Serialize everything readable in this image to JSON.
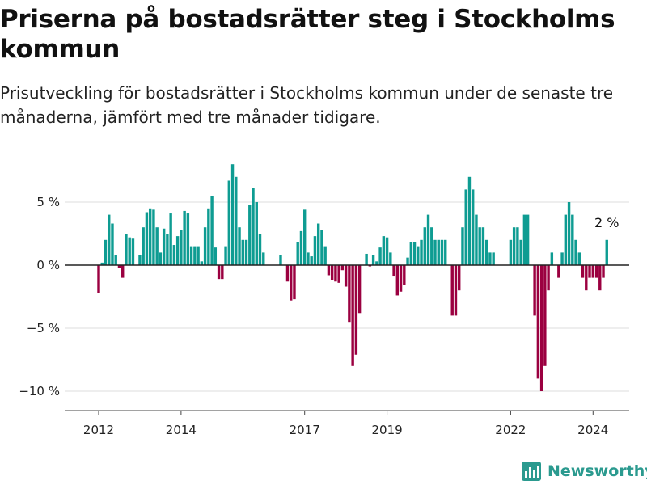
{
  "title": "Priserna på bostadsrätter steg i Stockholms kommun",
  "subtitle": "Prisutveckling för bostadsrätter i Stockholms kommun under de senaste tre månaderna, jämfört med tre månader tidigare.",
  "brand": {
    "name": "Newsworthy",
    "icon": "newsworthy-logo-icon"
  },
  "colors": {
    "positive": "#0e9c92",
    "negative": "#9b0040",
    "grid": "#dddddd",
    "zero_line": "#222222",
    "axis": "#444444"
  },
  "chart_data": {
    "type": "bar",
    "title": "Priserna på bostadsrätter steg i Stockholms kommun",
    "subtitle": "Prisutveckling för bostadsrätter i Stockholms kommun under de senaste tre månaderna, jämfört med tre månader tidigare.",
    "xlabel": "",
    "ylabel": "",
    "unit": "%",
    "ylim": [
      -11.5,
      8.5
    ],
    "y_ticks": [
      5,
      0,
      -5,
      -10
    ],
    "y_tick_labels": [
      "5 %",
      "0 %",
      "−5 %",
      "−10 %"
    ],
    "x_ticks": [
      2012,
      2014,
      2017,
      2019,
      2022,
      2024
    ],
    "x_tick_labels": [
      "2012",
      "2014",
      "2017",
      "2019",
      "2022",
      "2024"
    ],
    "grid": true,
    "first_month": "2012-01",
    "values": [
      -2.2,
      0.2,
      2.0,
      4.0,
      3.3,
      0.8,
      -0.2,
      -1.0,
      2.5,
      2.2,
      2.1,
      0.0,
      0.8,
      3.0,
      4.2,
      4.5,
      4.4,
      3.0,
      1.0,
      2.9,
      2.5,
      4.1,
      1.6,
      2.3,
      2.8,
      4.3,
      4.1,
      1.5,
      1.5,
      1.5,
      0.3,
      3.0,
      4.5,
      5.5,
      1.4,
      -1.1,
      -1.1,
      1.5,
      6.7,
      8.0,
      7.0,
      3.0,
      2.0,
      2.0,
      4.8,
      6.1,
      5.0,
      2.5,
      1.0,
      0.0,
      0.0,
      0.0,
      0.0,
      0.8,
      0.0,
      -1.3,
      -2.8,
      -2.7,
      1.8,
      2.7,
      4.4,
      1.0,
      0.7,
      2.3,
      3.3,
      2.8,
      1.5,
      -0.8,
      -1.2,
      -1.3,
      -1.4,
      -0.4,
      -1.7,
      -4.5,
      -8.0,
      -7.1,
      -3.8,
      0.0,
      0.9,
      -0.1,
      0.8,
      0.3,
      1.4,
      2.3,
      2.2,
      1.0,
      -0.9,
      -2.4,
      -2.1,
      -1.6,
      0.6,
      1.8,
      1.8,
      1.5,
      2.0,
      3.0,
      4.0,
      3.0,
      2.0,
      2.0,
      2.0,
      2.0,
      0.0,
      -4.0,
      -4.0,
      -2.0,
      3.0,
      6.0,
      7.0,
      6.0,
      4.0,
      3.0,
      3.0,
      2.0,
      1.0,
      1.0,
      0.0,
      0.0,
      0.0,
      0.0,
      2.0,
      3.0,
      3.0,
      2.0,
      4.0,
      4.0,
      0.0,
      -4.0,
      -9.0,
      -10.0,
      -8.0,
      -2.0,
      1.0,
      0.0,
      -1.0,
      1.0,
      4.0,
      5.0,
      4.0,
      2.0,
      1.0,
      -1.0,
      -2.0,
      -1.0,
      -1.0,
      -1.0,
      -2.0,
      -1.0,
      2.0
    ],
    "annotations": [
      {
        "text": "2 %",
        "target": "last_bar"
      }
    ]
  }
}
